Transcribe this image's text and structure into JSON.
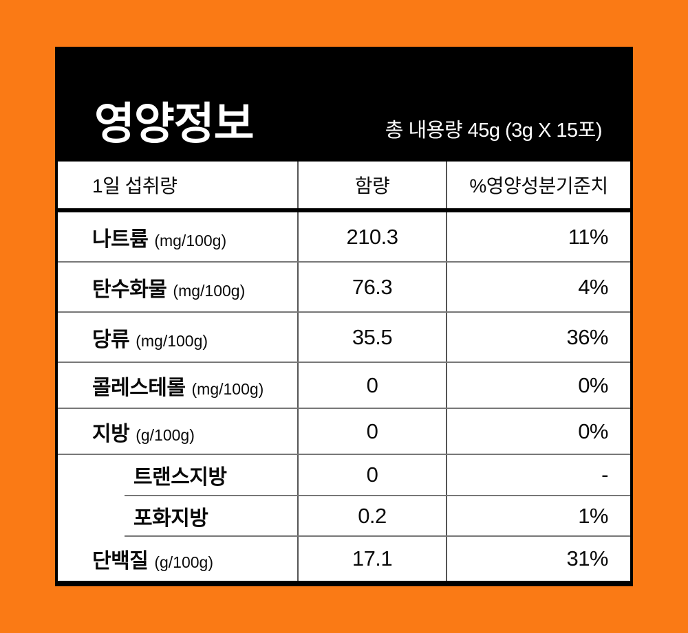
{
  "page": {
    "background_color": "#FA7A15"
  },
  "header": {
    "title": "영양정보",
    "total_amount": "총 내용량 45g (3g X 15포)",
    "background_color": "#000000",
    "text_color": "#FFFFFF"
  },
  "table": {
    "columns": {
      "daily_intake": "1일 섭취량",
      "amount": "함량",
      "dv_percent": "%영양성분기준치"
    },
    "rows": [
      {
        "label": "나트륨",
        "unit": "(mg/100g)",
        "amount": "210.3",
        "dv": "11%",
        "indent": false,
        "partial_divider": false
      },
      {
        "label": "탄수화물",
        "unit": "(mg/100g)",
        "amount": "76.3",
        "dv": "4%",
        "indent": false,
        "partial_divider": false
      },
      {
        "label": "당류",
        "unit": "(mg/100g)",
        "amount": "35.5",
        "dv": "36%",
        "indent": false,
        "partial_divider": false
      },
      {
        "label": "콜레스테롤",
        "unit": "(mg/100g)",
        "amount": "0",
        "dv": "0%",
        "indent": false,
        "partial_divider": false
      },
      {
        "label": "지방",
        "unit": "(g/100g)",
        "amount": "0",
        "dv": "0%",
        "indent": false,
        "partial_divider": false
      },
      {
        "label": "트랜스지방",
        "unit": "",
        "amount": "0",
        "dv": "-",
        "indent": true,
        "partial_divider": false
      },
      {
        "label": "포화지방",
        "unit": "",
        "amount": "0.2",
        "dv": "1%",
        "indent": true,
        "partial_divider": true
      },
      {
        "label": "단백질",
        "unit": "(g/100g)",
        "amount": "17.1",
        "dv": "31%",
        "indent": false,
        "partial_divider": true
      }
    ],
    "divider_color": "#777777",
    "border_color": "#000000"
  }
}
